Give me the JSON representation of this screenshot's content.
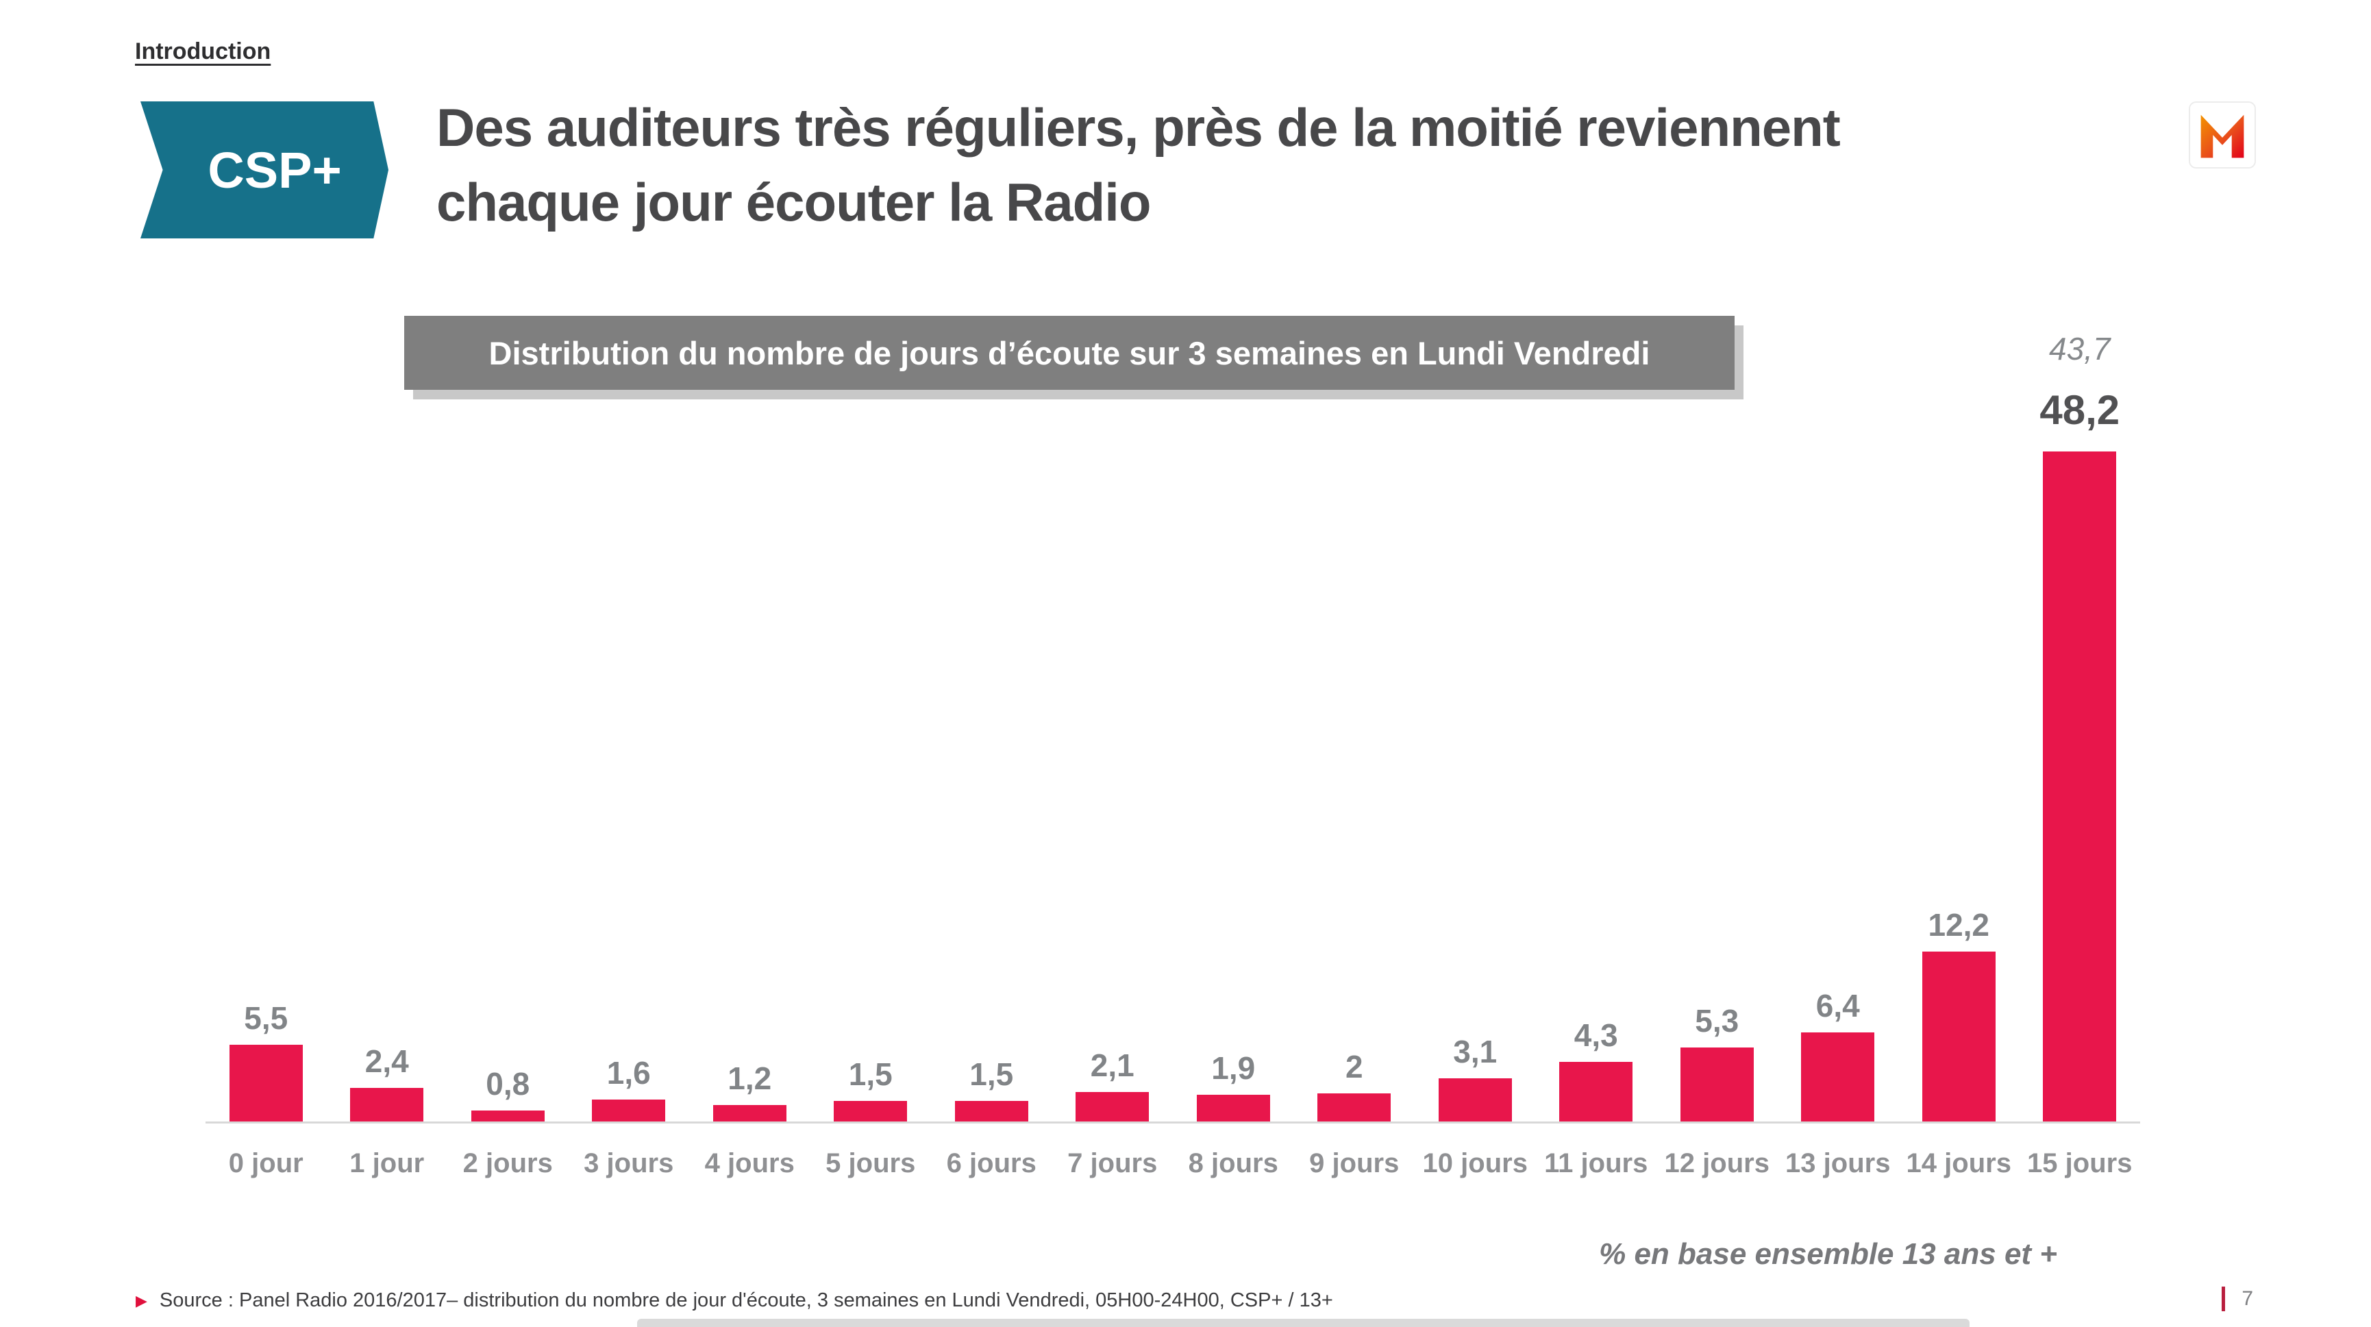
{
  "slide": {
    "breadcrumb": "Introduction",
    "badge_label": "CSP+",
    "title_line1": "Des auditeurs très réguliers, près de la moitié reviennent",
    "title_line2": "chaque jour écouter la Radio",
    "footer": {
      "source": "Source : Panel Radio 2016/2017– distribution du nombre de jour d'écoute, 3 semaines en Lundi Vendredi, 05H00-24H00, CSP+ / 13+",
      "base_note": "% en base ensemble 13 ans et +",
      "page_number": "7"
    },
    "colors": {
      "teal": "#16718a",
      "bar_red": "#e8164b",
      "banner_gray": "#7f7f7f",
      "accent_red": "#e0103c"
    },
    "icons": {
      "logo": "mediametrie-m-logo",
      "source_bullet": "triangle-right-icon"
    }
  },
  "chart_data": {
    "type": "bar",
    "title": "Distribution du nombre de jours d’écoute sur 3 semaines en Lundi Vendredi",
    "categories": [
      "0 jour",
      "1 jour",
      "2 jours",
      "3 jours",
      "4 jours",
      "5 jours",
      "6 jours",
      "7 jours",
      "8 jours",
      "9 jours",
      "10 jours",
      "11 jours",
      "12 jours",
      "13 jours",
      "14 jours",
      "15 jours"
    ],
    "values": [
      5.5,
      2.4,
      0.8,
      1.6,
      1.2,
      1.5,
      1.5,
      2.1,
      1.9,
      2,
      3.1,
      4.3,
      5.3,
      6.4,
      12.2,
      48.2
    ],
    "value_labels": [
      "5,5",
      "2,4",
      "0,8",
      "1,6",
      "1,2",
      "1,5",
      "1,5",
      "2,1",
      "1,9",
      "2",
      "3,1",
      "4,3",
      "5,3",
      "6,4",
      "12,2",
      "48,2"
    ],
    "annotation": {
      "index": 15,
      "text": "43,7"
    },
    "emphasis_index": 15,
    "bar_color": "#e8164b",
    "xlabel": "",
    "ylabel": "",
    "ylim": [
      0,
      50
    ],
    "grid": false,
    "legend": "none"
  }
}
